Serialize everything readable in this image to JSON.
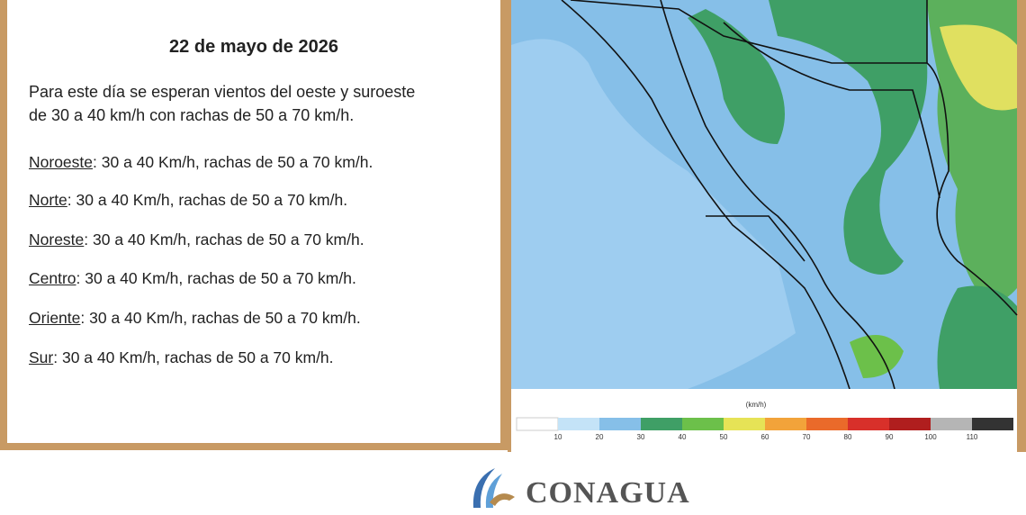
{
  "date": "22 de mayo de 2026",
  "summary": [
    "Para este día se esperan vientos del oeste y suroeste",
    "de 30 a 40 km/h con rachas de 50 a 70 km/h."
  ],
  "regions": [
    {
      "name": "Noroeste",
      "text": ":  30 a 40 Km/h, rachas de 50 a 70 km/h."
    },
    {
      "name": "Norte",
      "text": ": 30 a 40 Km/h, rachas de 50 a 70 km/h."
    },
    {
      "name": "Noreste",
      "text": ": 30 a 40 Km/h, rachas de 50 a 70 km/h."
    },
    {
      "name": "Centro",
      "text": ":  30 a 40 Km/h, rachas de 50 a 70 km/h."
    },
    {
      "name": "Oriente",
      "text": ":  30 a 40 Km/h, rachas de 50 a 70 km/h."
    },
    {
      "name": "Sur",
      "text": ":  30 a 40 Km/h, rachas de 50 a 70 km/h."
    }
  ],
  "legend": {
    "unit": "(km/h)",
    "labels": [
      "10",
      "20",
      "30",
      "40",
      "50",
      "60",
      "70",
      "80",
      "90",
      "100",
      "110"
    ],
    "colors": [
      "#ffffff",
      "#c4e3f7",
      "#86bfe8",
      "#3f9f66",
      "#6cc04a",
      "#e6e356",
      "#f2a33a",
      "#ea6a2a",
      "#d8302a",
      "#b01e1e",
      "#b5b5b5",
      "#333333"
    ]
  },
  "logo": "CONAGUA"
}
